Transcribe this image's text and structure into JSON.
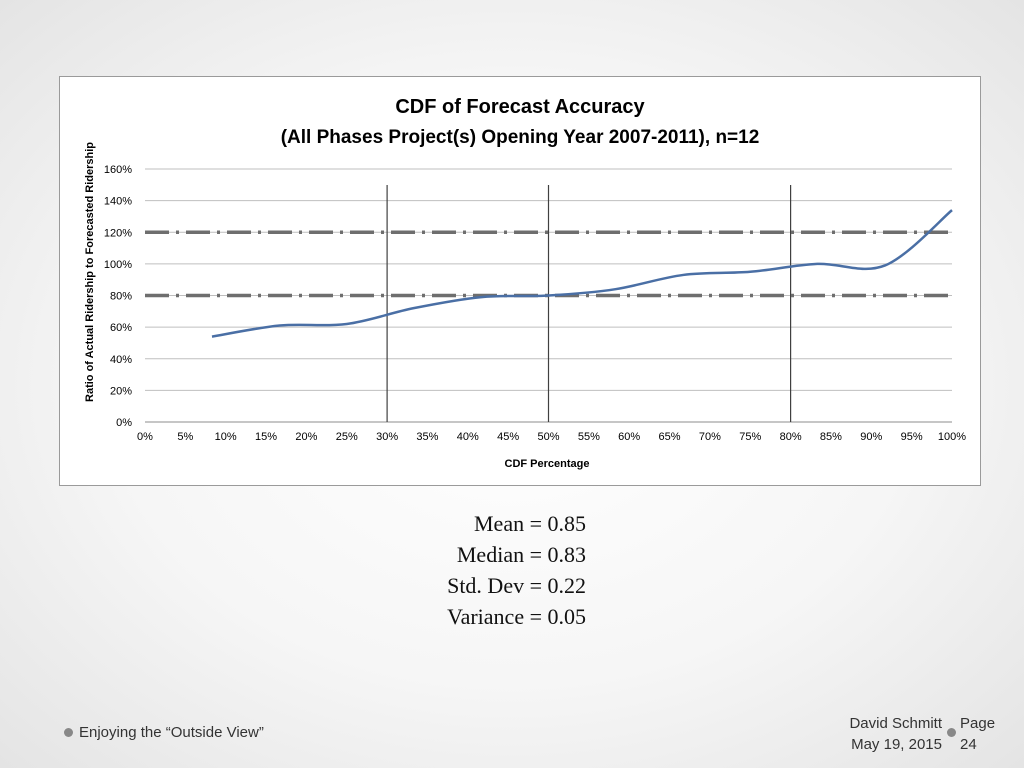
{
  "chart_data": {
    "type": "line",
    "title": "CDF of Forecast Accuracy",
    "subtitle": "(All Phases Project(s) Opening Year 2007-2011), n=12",
    "xlabel": "CDF Percentage",
    "ylabel": "Ratio of Actual Ridership to Forecasted Ridership",
    "xlim": [
      0,
      100
    ],
    "ylim": [
      0,
      160
    ],
    "x_ticks": [
      "0%",
      "5%",
      "10%",
      "15%",
      "20%",
      "25%",
      "30%",
      "35%",
      "40%",
      "45%",
      "50%",
      "55%",
      "60%",
      "65%",
      "70%",
      "75%",
      "80%",
      "85%",
      "90%",
      "95%",
      "100%"
    ],
    "y_ticks": [
      "0%",
      "20%",
      "40%",
      "60%",
      "80%",
      "100%",
      "120%",
      "140%",
      "160%"
    ],
    "grid": "horizontal",
    "series": [
      {
        "name": "CDF",
        "color": "#4a6fa5",
        "x": [
          8.3,
          16.7,
          25,
          33.3,
          41.7,
          50,
          58.3,
          66.7,
          75,
          83.3,
          91.7,
          100
        ],
        "y": [
          54,
          61,
          62,
          72,
          79,
          80,
          84,
          93,
          95,
          100,
          99,
          134
        ]
      }
    ],
    "reference_lines": {
      "horizontal": [
        80,
        120
      ],
      "horizontal_style": "dash-dot",
      "vertical": [
        30,
        50,
        80
      ]
    }
  },
  "stats": {
    "mean": "Mean = 0.85",
    "median": "Median = 0.83",
    "std_dev": "Std. Dev = 0.22",
    "variance": "Variance = 0.05"
  },
  "footer": {
    "left": "Enjoying the “Outside View”",
    "author": "David Schmitt",
    "date": "May 19, 2015",
    "page_label": "Page",
    "page_number": "24"
  }
}
